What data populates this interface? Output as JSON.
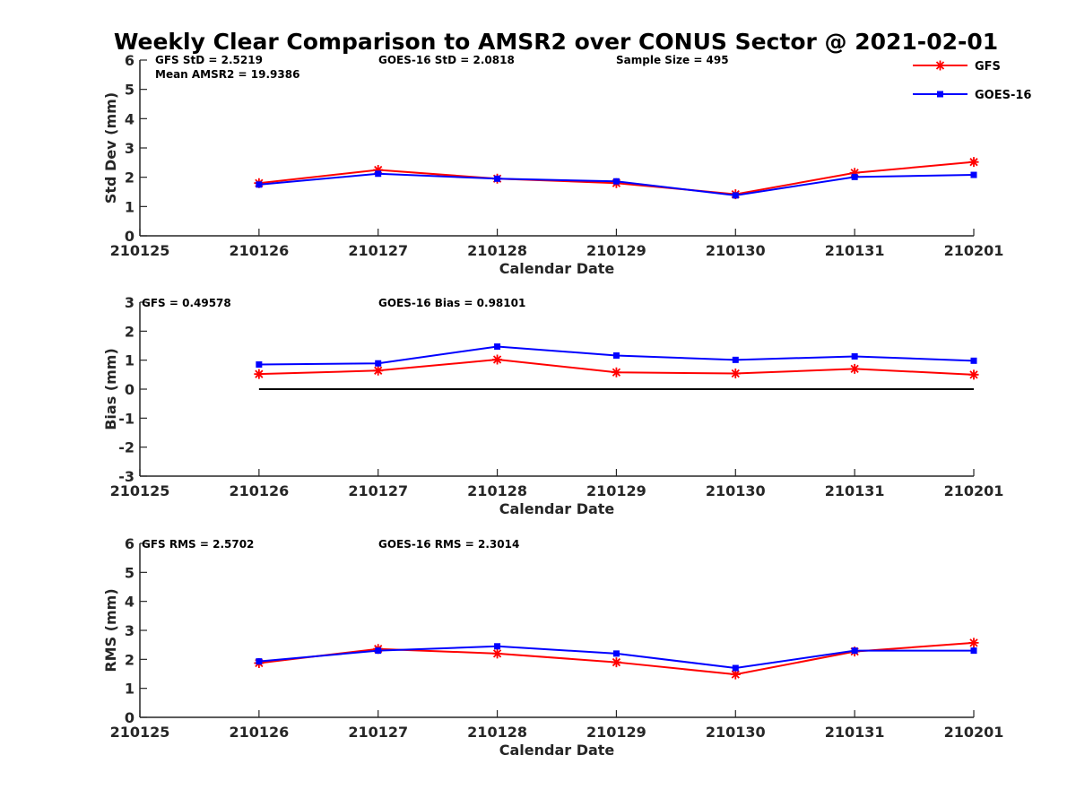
{
  "figure_title": "Weekly Clear Comparison to AMSR2 over CONUS Sector @ 2021-02-01",
  "legend": [
    {
      "label": "GFS",
      "color": "#ff0000",
      "marker": "asterisk"
    },
    {
      "label": "GOES-16",
      "color": "#0000ff",
      "marker": "square"
    }
  ],
  "chart_data": [
    {
      "type": "line",
      "title": "",
      "xlabel": "Calendar Date",
      "ylabel": "Std Dev (mm)",
      "x": [
        "210125",
        "210126",
        "210127",
        "210128",
        "210129",
        "210130",
        "210131",
        "210201"
      ],
      "xticks": [
        "210125",
        "210126",
        "210127",
        "210128",
        "210129",
        "210130",
        "210131",
        "210201"
      ],
      "ylim": [
        0,
        6
      ],
      "yticks": [
        "0",
        "1",
        "2",
        "3",
        "4",
        "5",
        "6"
      ],
      "grid": false,
      "legend_position": "top-right",
      "annotations": [
        "GFS StD = 2.5219",
        "GOES-16 StD = 2.0818",
        "Sample Size = 495",
        "Mean AMSR2 = 19.9386"
      ],
      "series": [
        {
          "name": "GFS",
          "color": "#ff0000",
          "marker": "asterisk",
          "values": [
            null,
            1.8,
            2.25,
            1.95,
            1.8,
            1.42,
            2.15,
            2.52
          ]
        },
        {
          "name": "GOES-16",
          "color": "#0000ff",
          "marker": "square",
          "values": [
            null,
            1.75,
            2.12,
            1.95,
            1.86,
            1.38,
            2.01,
            2.08
          ]
        }
      ]
    },
    {
      "type": "line",
      "title": "",
      "xlabel": "Calendar Date",
      "ylabel": "Bias (mm)",
      "x": [
        "210125",
        "210126",
        "210127",
        "210128",
        "210129",
        "210130",
        "210131",
        "210201"
      ],
      "xticks": [
        "210125",
        "210126",
        "210127",
        "210128",
        "210129",
        "210130",
        "210131",
        "210201"
      ],
      "ylim": [
        -3,
        3
      ],
      "yticks": [
        "-3",
        "-2",
        "-1",
        "0",
        "1",
        "2",
        "3"
      ],
      "grid": false,
      "annotations": [
        "GFS = 0.49578",
        "GOES-16 Bias  = 0.98101"
      ],
      "reference_line": {
        "y": 0,
        "color": "#000000"
      },
      "series": [
        {
          "name": "GFS",
          "color": "#ff0000",
          "marker": "asterisk",
          "values": [
            null,
            0.52,
            0.64,
            1.02,
            0.58,
            0.54,
            0.7,
            0.5
          ]
        },
        {
          "name": "GOES-16",
          "color": "#0000ff",
          "marker": "square",
          "values": [
            null,
            0.85,
            0.89,
            1.47,
            1.16,
            1.01,
            1.13,
            0.98
          ]
        }
      ]
    },
    {
      "type": "line",
      "title": "",
      "xlabel": "Calendar Date",
      "ylabel": "RMS (mm)",
      "x": [
        "210125",
        "210126",
        "210127",
        "210128",
        "210129",
        "210130",
        "210131",
        "210201"
      ],
      "xticks": [
        "210125",
        "210126",
        "210127",
        "210128",
        "210129",
        "210130",
        "210131",
        "210201"
      ],
      "ylim": [
        0,
        6
      ],
      "yticks": [
        "0",
        "1",
        "2",
        "3",
        "4",
        "5",
        "6"
      ],
      "grid": false,
      "annotations": [
        "GFS RMS = 2.5702",
        "GOES-16 RMS = 2.3014"
      ],
      "series": [
        {
          "name": "GFS",
          "color": "#ff0000",
          "marker": "asterisk",
          "values": [
            null,
            1.87,
            2.36,
            2.2,
            1.9,
            1.48,
            2.27,
            2.57
          ]
        },
        {
          "name": "GOES-16",
          "color": "#0000ff",
          "marker": "square",
          "values": [
            null,
            1.93,
            2.3,
            2.45,
            2.2,
            1.7,
            2.3,
            2.3
          ]
        }
      ]
    }
  ]
}
